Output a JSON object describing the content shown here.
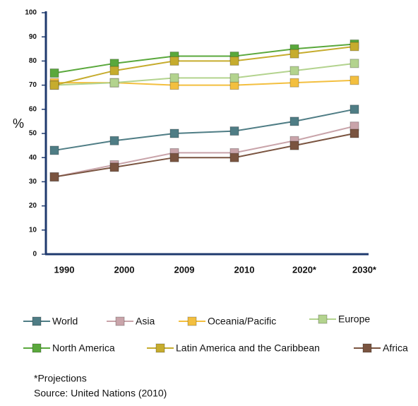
{
  "chart_data": {
    "type": "line",
    "y_label": "%",
    "categories": [
      "1990",
      "2000",
      "2009",
      "2010",
      "2020*",
      "2030*"
    ],
    "series": [
      {
        "name": "World",
        "color": "#4f7d85",
        "values": [
          43,
          47,
          50,
          51,
          55,
          60
        ]
      },
      {
        "name": "Asia",
        "color": "#c9a4aa",
        "values": [
          32,
          37,
          42,
          42,
          47,
          53
        ]
      },
      {
        "name": "Oceania/Pacific",
        "color": "#f3bf3f",
        "values": [
          71,
          71,
          70,
          70,
          71,
          72
        ]
      },
      {
        "name": "Europe",
        "color": "#b3d38e",
        "values": [
          70,
          71,
          73,
          73,
          76,
          79
        ]
      },
      {
        "name": "North America",
        "color": "#5aa83c",
        "values": [
          75,
          79,
          82,
          82,
          85,
          87
        ]
      },
      {
        "name": "Latin America and the Caribbean",
        "color": "#c6ac2e",
        "values": [
          70,
          76,
          80,
          80,
          83,
          86
        ]
      },
      {
        "name": "Africa",
        "color": "#7a5440",
        "values": [
          32,
          36,
          40,
          40,
          45,
          50
        ]
      }
    ],
    "ylim": [
      0,
      100
    ],
    "yticks": [
      0,
      10,
      20,
      30,
      40,
      50,
      60,
      70,
      80,
      90,
      100
    ],
    "note": "*Projections",
    "source": "Source:  United Nations (2010)"
  }
}
